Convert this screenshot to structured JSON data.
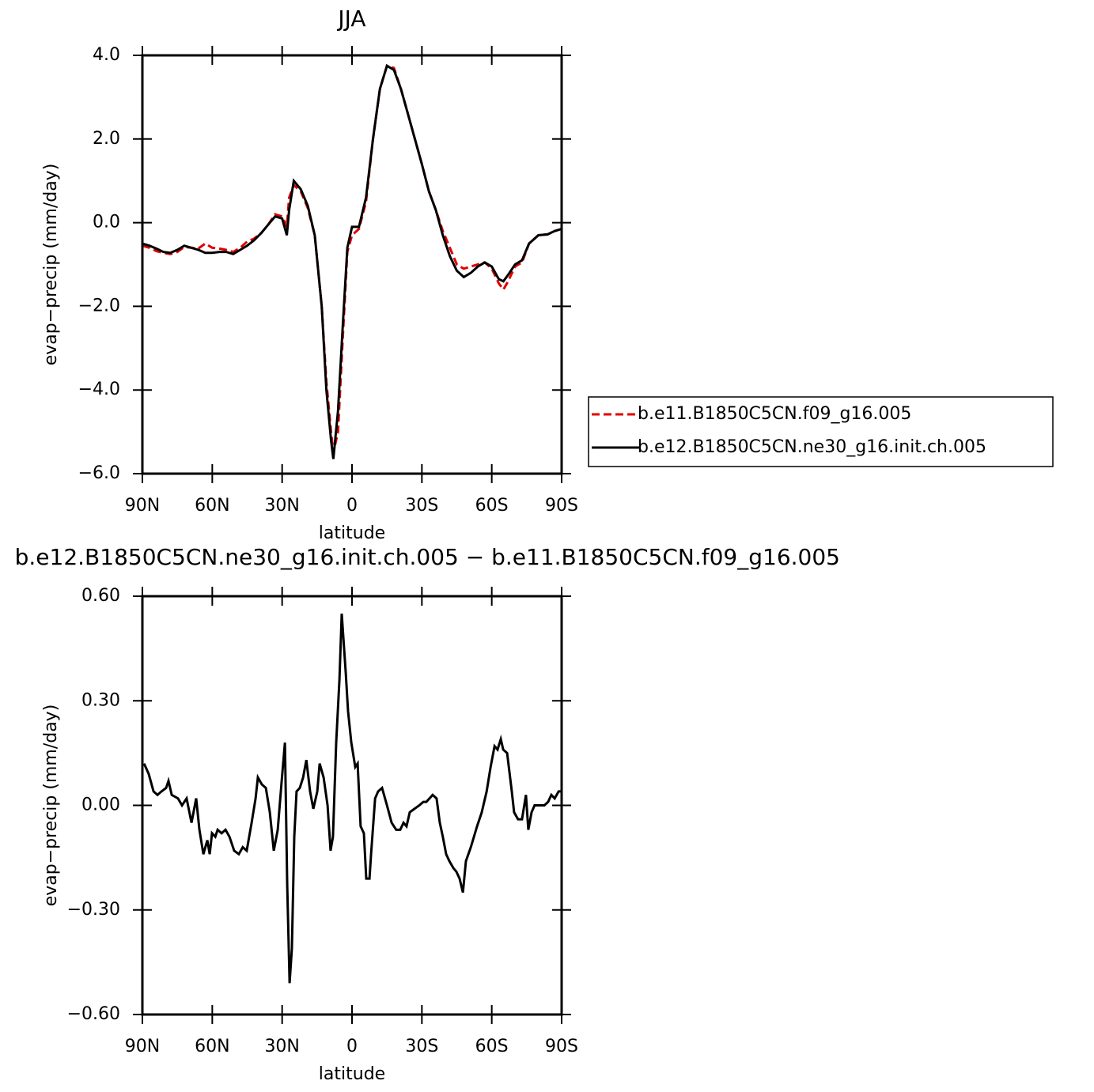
{
  "chart_data": [
    {
      "type": "line",
      "title": "JJA",
      "xlabel": "latitude",
      "ylabel": "evap−precip (mm/day)",
      "xlim": [
        90,
        -90
      ],
      "xticks": [
        {
          "value": 90,
          "label": "90N"
        },
        {
          "value": 60,
          "label": "60N"
        },
        {
          "value": 30,
          "label": "30N"
        },
        0,
        {
          "value": -30,
          "label": "30S"
        },
        {
          "value": -60,
          "label": "60S"
        },
        {
          "value": -90,
          "label": "90S"
        }
      ],
      "ylim": [
        -6,
        4
      ],
      "yticks": [
        {
          "value": -6,
          "label": "−6.0"
        },
        {
          "value": -4,
          "label": "−4.0"
        },
        {
          "value": -2,
          "label": "−2.0"
        },
        {
          "value": 0,
          "label": "0.0"
        },
        {
          "value": 2,
          "label": "2.0"
        },
        {
          "value": 4,
          "label": "4.0"
        }
      ],
      "legend": "right",
      "x": [
        90,
        87,
        84,
        81,
        78,
        75,
        72,
        69,
        66,
        63,
        60,
        57,
        54,
        51,
        48,
        45,
        42,
        39,
        36,
        33,
        30,
        28,
        27,
        25,
        22,
        19,
        16,
        13,
        11,
        9,
        8,
        6,
        4,
        2,
        0,
        -3,
        -6,
        -9,
        -12,
        -15,
        -18,
        -21,
        -24,
        -27,
        -30,
        -33,
        -36,
        -39,
        -42,
        -45,
        -48,
        -51,
        -54,
        -57,
        -60,
        -63,
        -65,
        -67,
        -70,
        -73,
        -76,
        -80,
        -84,
        -87,
        -90
      ],
      "series": [
        {
          "name": "b.e11.B1850C5CN.f09_g16.005",
          "color": "#e00000",
          "dashed": true,
          "values": [
            -0.55,
            -0.6,
            -0.68,
            -0.72,
            -0.75,
            -0.7,
            -0.58,
            -0.6,
            -0.62,
            -0.5,
            -0.6,
            -0.62,
            -0.65,
            -0.7,
            -0.6,
            -0.45,
            -0.38,
            -0.25,
            -0.05,
            0.2,
            0.15,
            -0.1,
            0.6,
            0.9,
            0.75,
            0.35,
            -0.3,
            -2.0,
            -3.8,
            -5.0,
            -5.5,
            -5.0,
            -2.8,
            -0.7,
            -0.3,
            -0.15,
            0.5,
            2.0,
            3.2,
            3.75,
            3.7,
            3.2,
            2.6,
            2.0,
            1.4,
            0.75,
            0.3,
            -0.2,
            -0.6,
            -1.0,
            -1.1,
            -1.05,
            -1.0,
            -0.95,
            -1.1,
            -1.45,
            -1.6,
            -1.4,
            -1.05,
            -0.95,
            -0.5,
            -0.3,
            -0.28,
            -0.2,
            -0.15
          ]
        },
        {
          "name": "b.e12.B1850C5CN.ne30_g16.init.ch.005",
          "color": "#000000",
          "dashed": false,
          "values": [
            -0.5,
            -0.55,
            -0.62,
            -0.7,
            -0.72,
            -0.65,
            -0.55,
            -0.6,
            -0.65,
            -0.72,
            -0.72,
            -0.7,
            -0.7,
            -0.75,
            -0.65,
            -0.55,
            -0.42,
            -0.25,
            -0.05,
            0.15,
            0.1,
            -0.3,
            0.3,
            1.0,
            0.8,
            0.4,
            -0.3,
            -2.0,
            -4.0,
            -5.2,
            -5.65,
            -4.5,
            -2.5,
            -0.6,
            -0.1,
            -0.1,
            0.6,
            2.0,
            3.2,
            3.75,
            3.65,
            3.2,
            2.6,
            2.0,
            1.4,
            0.75,
            0.3,
            -0.3,
            -0.8,
            -1.15,
            -1.3,
            -1.2,
            -1.05,
            -0.95,
            -1.05,
            -1.35,
            -1.4,
            -1.25,
            -1.0,
            -0.9,
            -0.5,
            -0.3,
            -0.28,
            -0.2,
            -0.15
          ]
        }
      ]
    },
    {
      "type": "line",
      "title": "b.e12.B1850C5CN.ne30_g16.init.ch.005 − b.e11.B1850C5CN.f09_g16.005",
      "xlabel": "latitude",
      "ylabel": "evap−precip (mm/day)",
      "xlim": [
        90,
        -90
      ],
      "xticks": [
        {
          "value": 90,
          "label": "90N"
        },
        {
          "value": 60,
          "label": "60N"
        },
        {
          "value": 30,
          "label": "30N"
        },
        0,
        {
          "value": -30,
          "label": "30S"
        },
        {
          "value": -60,
          "label": "60S"
        },
        {
          "value": -90,
          "label": "90S"
        }
      ],
      "ylim": [
        -0.6,
        0.6
      ],
      "yticks": [
        {
          "value": -0.6,
          "label": "−0.60"
        },
        {
          "value": -0.3,
          "label": "−0.30"
        },
        {
          "value": 0,
          "label": "0.00"
        },
        {
          "value": 0.3,
          "label": "0.30"
        },
        {
          "value": 0.6,
          "label": "0.60"
        }
      ],
      "x": [
        89.3,
        87.3,
        85.2,
        83.5,
        81.8,
        79.8,
        78.8,
        77.4,
        74.7,
        73.0,
        71.0,
        68.9,
        66.9,
        65.5,
        63.8,
        62.1,
        61.1,
        60.1,
        58.7,
        57.7,
        56.0,
        54.3,
        52.6,
        50.6,
        48.6,
        46.9,
        45.2,
        43.1,
        41.4,
        40.4,
        38.7,
        37.0,
        35.3,
        33.6,
        31.9,
        30.2,
        28.8,
        27.8,
        26.8,
        25.8,
        24.8,
        23.8,
        22.4,
        21.0,
        19.6,
        18.0,
        16.6,
        14.9,
        13.9,
        12.2,
        10.5,
        9.2,
        8.2,
        6.8,
        5.4,
        4.4,
        2.7,
        1.7,
        0.3,
        -1.4,
        -2.4,
        -3.7,
        -5.1,
        -6.1,
        -7.5,
        -8.2,
        -9.9,
        -11.2,
        -12.9,
        -15.0,
        -17.0,
        -19.0,
        -20.7,
        -22.1,
        -23.4,
        -24.8,
        -26.8,
        -28.9,
        -30.6,
        -31.9,
        -33.3,
        -34.6,
        -36.3,
        -37.7,
        -39.0,
        -40.4,
        -41.8,
        -43.5,
        -44.8,
        -46.2,
        -47.6,
        -48.9,
        -51.0,
        -53.7,
        -55.7,
        -57.8,
        -59.5,
        -61.2,
        -62.5,
        -63.9,
        -64.9,
        -66.6,
        -68.6,
        -69.6,
        -71.3,
        -73.0,
        -74.7,
        -75.7,
        -77.1,
        -78.4,
        -79.8,
        -81.2,
        -82.6,
        -84.2,
        -85.6,
        -87.0,
        -88.7,
        -90.0
      ],
      "series": [
        {
          "color": "#000000",
          "dashed": false,
          "values": [
            0.12,
            0.09,
            0.04,
            0.03,
            0.04,
            0.05,
            0.07,
            0.03,
            0.02,
            0.0,
            0.02,
            -0.05,
            0.02,
            -0.07,
            -0.14,
            -0.1,
            -0.14,
            -0.08,
            -0.09,
            -0.07,
            -0.08,
            -0.07,
            -0.09,
            -0.13,
            -0.14,
            -0.12,
            -0.13,
            -0.05,
            0.02,
            0.08,
            0.06,
            0.05,
            -0.02,
            -0.13,
            -0.07,
            0.07,
            0.18,
            -0.23,
            -0.51,
            -0.41,
            -0.09,
            0.04,
            0.05,
            0.08,
            0.13,
            0.04,
            -0.01,
            0.04,
            0.12,
            0.08,
            0.0,
            -0.13,
            -0.09,
            0.18,
            0.36,
            0.55,
            0.38,
            0.27,
            0.18,
            0.11,
            0.12,
            -0.06,
            -0.08,
            -0.21,
            -0.21,
            -0.14,
            0.02,
            0.04,
            0.05,
            0.0,
            -0.05,
            -0.07,
            -0.07,
            -0.05,
            -0.06,
            -0.02,
            -0.01,
            0.0,
            0.01,
            0.01,
            0.02,
            0.03,
            0.02,
            -0.05,
            -0.09,
            -0.14,
            -0.16,
            -0.18,
            -0.19,
            -0.21,
            -0.25,
            -0.16,
            -0.12,
            -0.06,
            -0.02,
            0.04,
            0.11,
            0.17,
            0.16,
            0.19,
            0.16,
            0.15,
            0.04,
            -0.02,
            -0.04,
            -0.04,
            0.03,
            -0.07,
            -0.02,
            0.0,
            0.0,
            0.0,
            0.0,
            0.01,
            0.03,
            0.02,
            0.04,
            0.04
          ]
        }
      ]
    }
  ]
}
